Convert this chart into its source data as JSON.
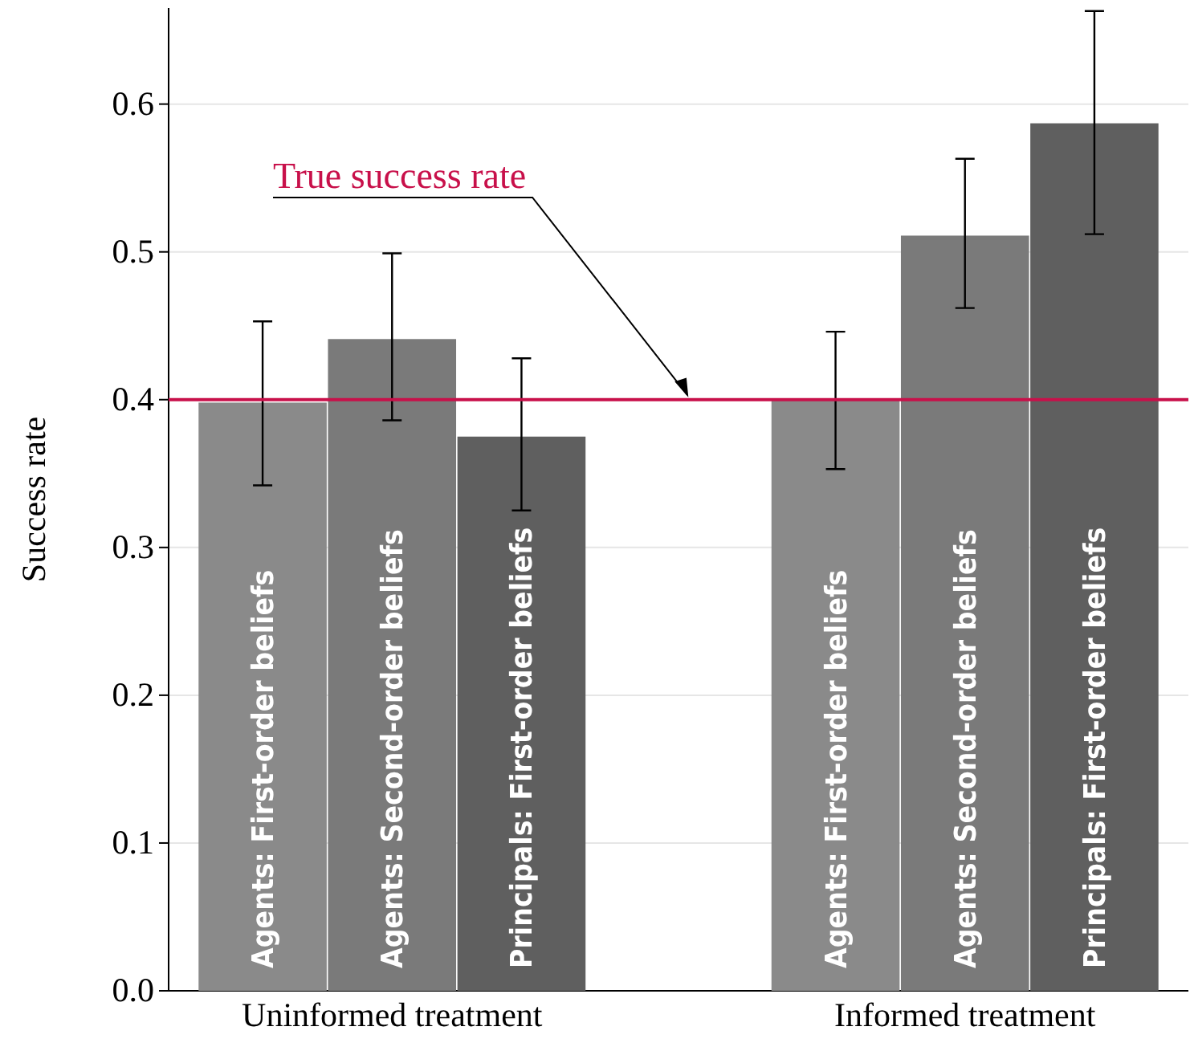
{
  "chart_data": {
    "type": "bar",
    "ylabel": "Success rate",
    "categories": [
      "Uninformed treatment",
      "Informed treatment"
    ],
    "series": [
      {
        "name": "Agents: First-order beliefs",
        "color": "#8a8a8a",
        "values": [
          0.398,
          0.4
        ],
        "errors": [
          [
            0.342,
            0.453
          ],
          [
            0.353,
            0.446
          ]
        ]
      },
      {
        "name": "Agents: Second-order beliefs",
        "color": "#7a7a7a",
        "values": [
          0.441,
          0.511
        ],
        "errors": [
          [
            0.386,
            0.499
          ],
          [
            0.462,
            0.563
          ]
        ]
      },
      {
        "name": "Principals: First-order beliefs",
        "color": "#5f5f5f",
        "values": [
          0.375,
          0.587
        ],
        "errors": [
          [
            0.325,
            0.428
          ],
          [
            0.512,
            0.663
          ]
        ]
      }
    ],
    "ylim": [
      0,
      0.665
    ],
    "yticks": [
      {
        "value": 0,
        "label": "0.0"
      },
      0.1,
      0.2,
      0.3,
      0.4,
      0.5,
      0.6
    ],
    "grid": "y",
    "legend": false,
    "ref_lines": [
      {
        "axis": "y",
        "value": 0.4,
        "label": "True success rate",
        "color": "#c8104a"
      }
    ]
  }
}
